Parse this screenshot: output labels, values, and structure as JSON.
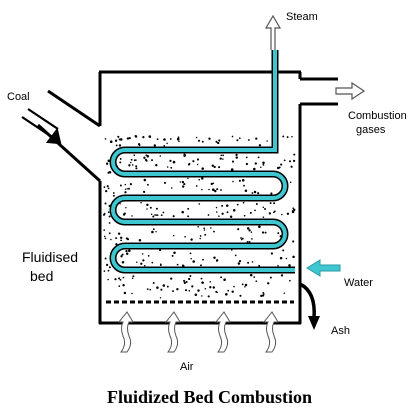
{
  "labels": {
    "steam": "Steam",
    "coal": "Coal",
    "combustion_line1": "Combustion",
    "combustion_line2": "gases",
    "bed_line1": "Fluidised",
    "bed_line2": "bed",
    "water": "Water",
    "ash": "Ash",
    "air": "Air"
  },
  "caption": "Fluidized Bed Combustion",
  "colors": {
    "water_tube": "#3ec7d0",
    "water_arrow": "#3ec7d0",
    "outline": "#000000",
    "particles": "#000000"
  },
  "icons": [
    "steam-arrow-icon",
    "coal-inlet-arrow-icon",
    "exhaust-arrow-icon",
    "water-inlet-arrow-icon",
    "ash-arrow-icon",
    "air-arrow-icon"
  ]
}
